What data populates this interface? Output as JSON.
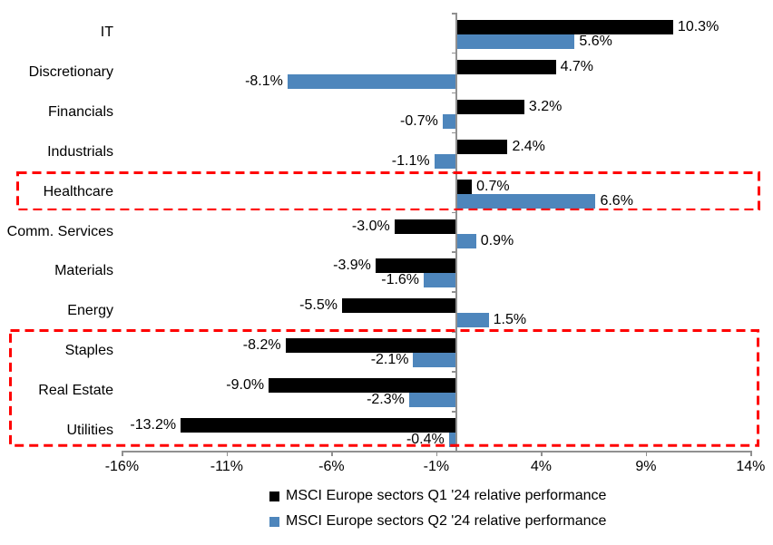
{
  "chart_data": {
    "type": "bar",
    "orientation": "horizontal",
    "categories": [
      "IT",
      "Discretionary",
      "Financials",
      "Industrials",
      "Healthcare",
      "Comm. Services",
      "Materials",
      "Energy",
      "Staples",
      "Real Estate",
      "Utilities"
    ],
    "series": [
      {
        "name": "MSCI Europe sectors Q1 '24 relative performance",
        "color": "#000000",
        "values": [
          10.3,
          4.7,
          3.2,
          2.4,
          0.7,
          -3.0,
          -3.9,
          -5.5,
          -8.2,
          -9.0,
          -13.2
        ],
        "labels": [
          "10.3%",
          "4.7%",
          "3.2%",
          "2.4%",
          "0.7%",
          "-3.0%",
          "-3.9%",
          "-5.5%",
          "-8.2%",
          "-9.0%",
          "-13.2%"
        ]
      },
      {
        "name": "MSCI Europe sectors Q2 '24 relative performance",
        "color": "#4E86BC",
        "values": [
          5.6,
          -8.1,
          -0.7,
          -1.1,
          6.6,
          0.9,
          -1.6,
          1.5,
          -2.1,
          -2.3,
          -0.4
        ],
        "labels": [
          "5.6%",
          "-8.1%",
          "-0.7%",
          "-1.1%",
          "6.6%",
          "0.9%",
          "-1.6%",
          "1.5%",
          "-2.1%",
          "-2.3%",
          "-0.4%"
        ]
      }
    ],
    "xlim": [
      -16,
      14
    ],
    "x_ticks": [
      {
        "value": -16,
        "label": "-16%"
      },
      {
        "value": -11,
        "label": "-11%"
      },
      {
        "value": -6,
        "label": "-6%"
      },
      {
        "value": -1,
        "label": "-1%"
      },
      {
        "value": 4,
        "label": "4%"
      },
      {
        "value": 9,
        "label": "9%"
      },
      {
        "value": 14,
        "label": "14%"
      }
    ],
    "grid": false,
    "legend_position": "bottom",
    "axis_color": "#909090",
    "highlight_boxes": [
      {
        "start": "Healthcare",
        "end": "Healthcare",
        "color": "#FF0000"
      },
      {
        "start": "Staples",
        "end": "Utilities",
        "color": "#FF0000"
      }
    ]
  }
}
